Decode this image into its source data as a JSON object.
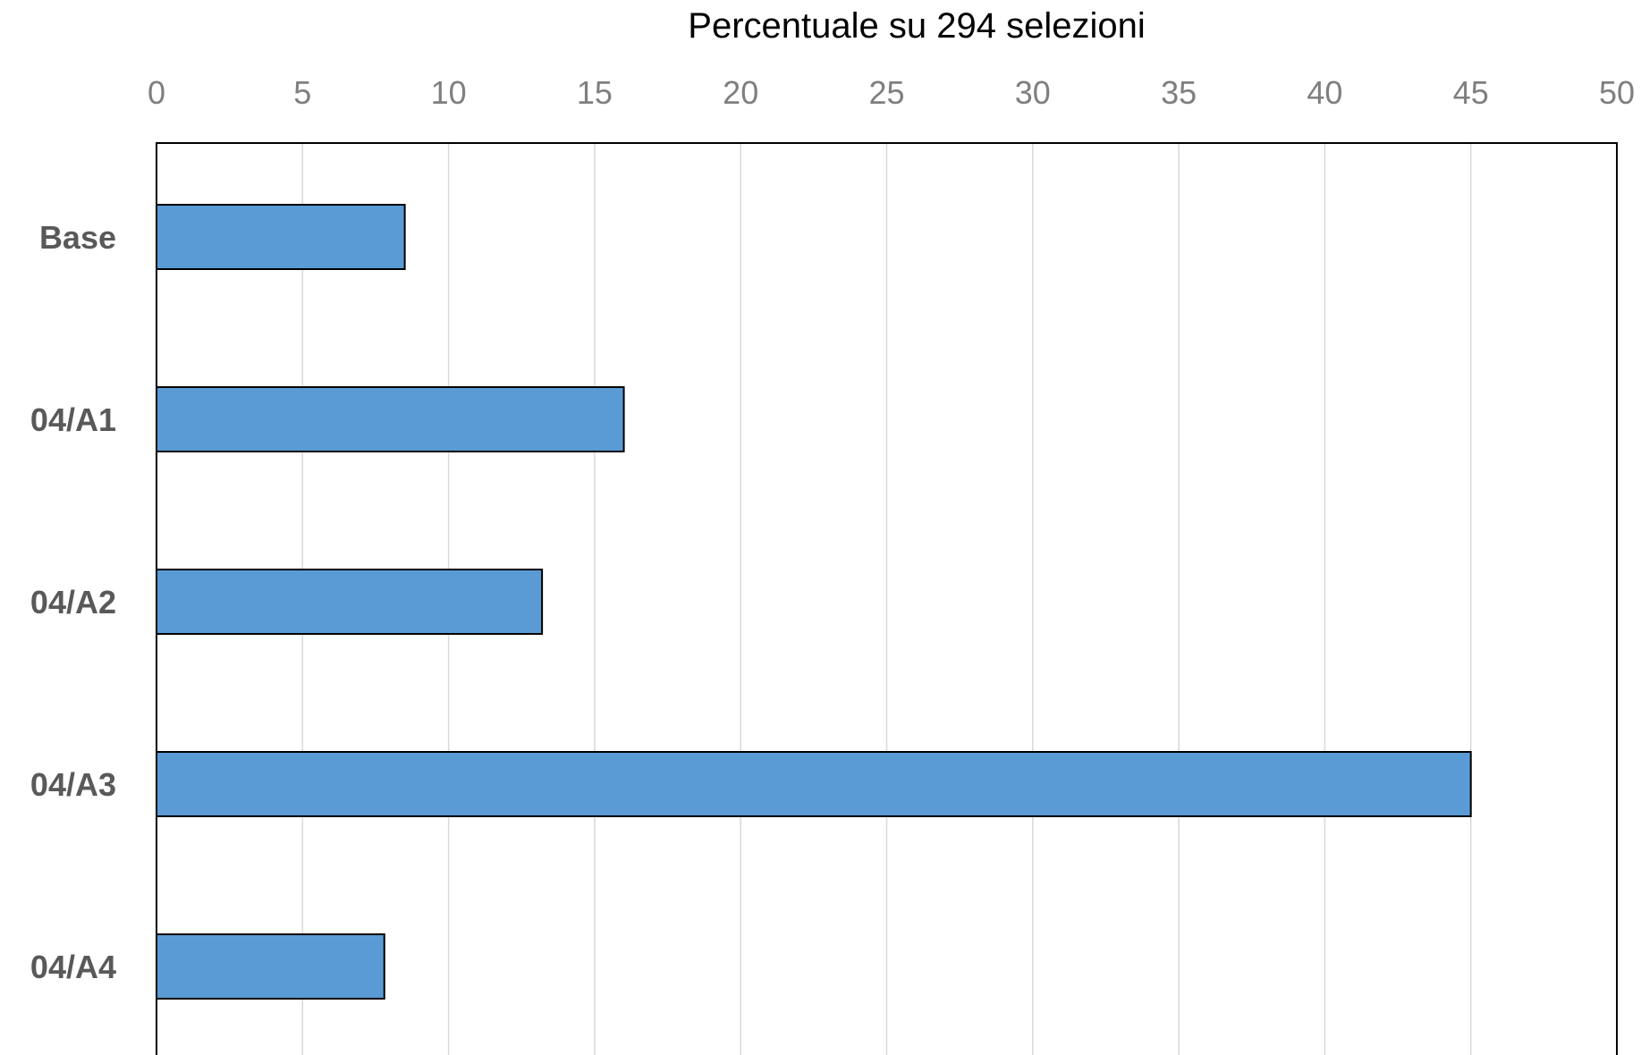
{
  "chart_data": {
    "type": "bar",
    "orientation": "horizontal",
    "title": "",
    "xlabel": "Percentuale su 294 selezioni",
    "ylabel": "",
    "xlabel_position": "top",
    "xlim": [
      0,
      50
    ],
    "x_ticks": [
      0,
      5,
      10,
      15,
      20,
      25,
      30,
      35,
      40,
      45,
      50
    ],
    "grid": "vertical",
    "legend": "none",
    "categories": [
      "Base",
      "04/A1",
      "04/A2",
      "04/A3",
      "04/A4"
    ],
    "values": [
      8.5,
      16.0,
      13.2,
      45.0,
      7.8
    ],
    "bar_color": "#5b9bd5",
    "bar_edge_color": "#000000"
  }
}
